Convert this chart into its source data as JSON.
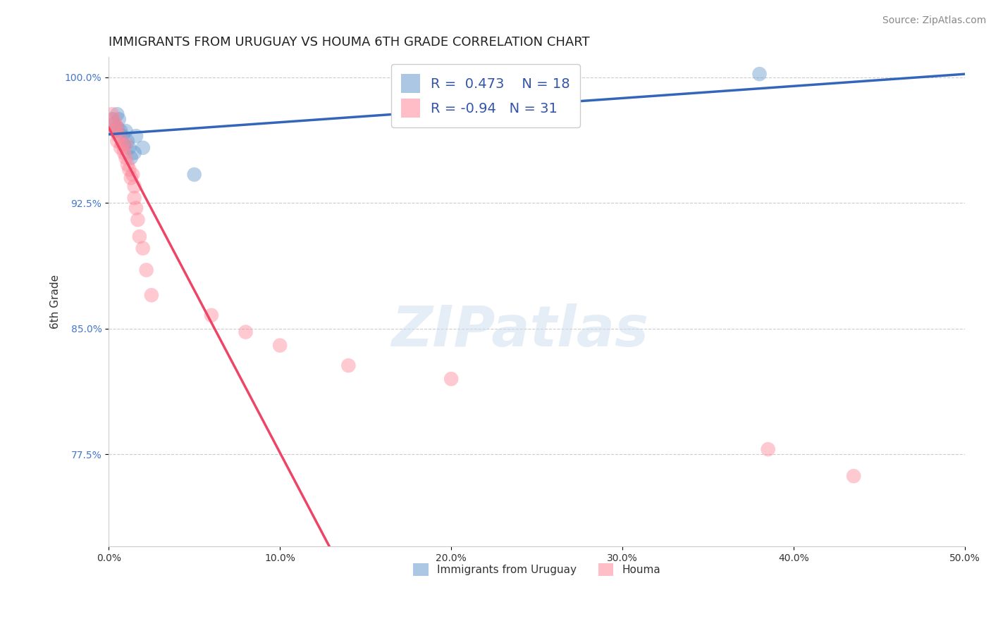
{
  "title": "IMMIGRANTS FROM URUGUAY VS HOUMA 6TH GRADE CORRELATION CHART",
  "source": "Source: ZipAtlas.com",
  "ylabel": "6th Grade",
  "xlim": [
    0.0,
    0.5
  ],
  "ylim": [
    0.72,
    1.012
  ],
  "yticks": [
    0.775,
    0.85,
    0.925,
    1.0
  ],
  "ytick_labels": [
    "77.5%",
    "85.0%",
    "92.5%",
    "100.0%"
  ],
  "xticks": [
    0.0,
    0.1,
    0.2,
    0.3,
    0.4,
    0.5
  ],
  "xtick_labels": [
    "0.0%",
    "10.0%",
    "20.0%",
    "30.0%",
    "40.0%",
    "50.0%"
  ],
  "grid_color": "#cccccc",
  "background_color": "#ffffff",
  "blue_color": "#6699cc",
  "pink_color": "#ff8899",
  "blue_line_color": "#3366bb",
  "pink_line_color": "#ee4466",
  "blue_R": 0.473,
  "blue_N": 18,
  "pink_R": -0.94,
  "pink_N": 31,
  "legend_label_blue": "Immigrants from Uruguay",
  "legend_label_pink": "Houma",
  "watermark": "ZIPatlas",
  "blue_scatter_x": [
    0.002,
    0.003,
    0.004,
    0.005,
    0.005,
    0.006,
    0.007,
    0.008,
    0.009,
    0.01,
    0.011,
    0.012,
    0.013,
    0.015,
    0.016,
    0.02,
    0.05,
    0.38
  ],
  "blue_scatter_y": [
    0.975,
    0.972,
    0.968,
    0.97,
    0.978,
    0.975,
    0.968,
    0.965,
    0.96,
    0.968,
    0.962,
    0.958,
    0.952,
    0.955,
    0.965,
    0.958,
    0.942,
    1.002
  ],
  "pink_scatter_x": [
    0.002,
    0.003,
    0.004,
    0.004,
    0.005,
    0.005,
    0.006,
    0.007,
    0.008,
    0.009,
    0.01,
    0.01,
    0.011,
    0.012,
    0.013,
    0.014,
    0.015,
    0.015,
    0.016,
    0.017,
    0.018,
    0.02,
    0.022,
    0.025,
    0.06,
    0.08,
    0.1,
    0.14,
    0.2,
    0.385,
    0.435
  ],
  "pink_scatter_y": [
    0.978,
    0.975,
    0.972,
    0.968,
    0.97,
    0.962,
    0.965,
    0.958,
    0.96,
    0.955,
    0.952,
    0.96,
    0.948,
    0.945,
    0.94,
    0.942,
    0.935,
    0.928,
    0.922,
    0.915,
    0.905,
    0.898,
    0.885,
    0.87,
    0.858,
    0.848,
    0.84,
    0.828,
    0.82,
    0.778,
    0.762
  ],
  "title_fontsize": 13,
  "axis_label_fontsize": 11,
  "tick_fontsize": 10,
  "source_fontsize": 10
}
